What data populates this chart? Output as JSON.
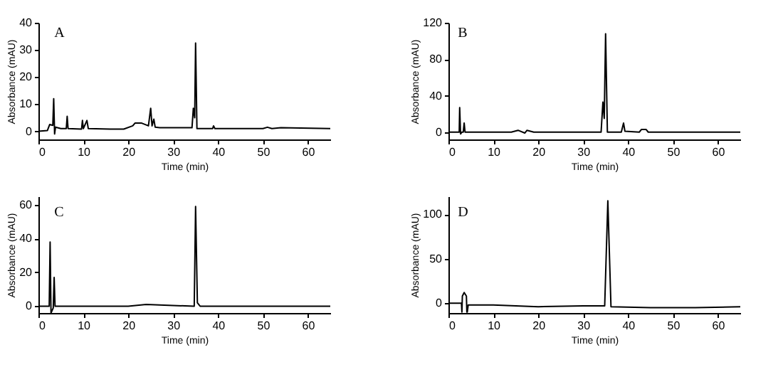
{
  "chart_data": [
    {
      "type": "line",
      "title": "A",
      "xlabel": "Time (min)",
      "ylabel": "Absorbance (mAU)",
      "xlim": [
        0,
        65
      ],
      "xticks": [
        0,
        10,
        20,
        30,
        40,
        50,
        60
      ],
      "ylim": [
        -3,
        40
      ],
      "yticks": [
        0,
        10,
        20,
        30,
        40
      ],
      "grid": false,
      "series": [
        {
          "color": "#000000",
          "x": [
            0,
            2,
            2.5,
            3.2,
            3.4,
            3.6,
            3.8,
            5,
            6.2,
            6.4,
            6.6,
            9.6,
            9.8,
            10,
            10.8,
            11.1,
            16,
            19,
            21,
            21.5,
            23,
            24.5,
            25,
            25.3,
            25.7,
            26,
            27,
            34.2,
            34.5,
            34.8,
            35,
            35.3,
            38.8,
            39,
            39.3,
            50,
            51,
            52,
            54,
            65
          ],
          "values": [
            0,
            0.3,
            2.5,
            2.2,
            12,
            -1,
            1.5,
            1,
            1,
            5.5,
            1,
            0.8,
            4,
            1,
            4,
            1,
            0.8,
            0.8,
            2,
            3,
            3,
            2,
            8.5,
            2,
            4.5,
            1.5,
            1.3,
            1.3,
            8.5,
            5,
            32.5,
            1,
            1,
            2,
            1,
            1,
            1.5,
            1,
            1.3,
            1
          ]
        }
      ]
    },
    {
      "type": "line",
      "title": "B",
      "xlabel": "Time (min)",
      "ylabel": "Absorbance (mAU)",
      "xlim": [
        0,
        65
      ],
      "xticks": [
        0,
        10,
        20,
        30,
        40,
        50,
        60
      ],
      "ylim": [
        -8,
        120
      ],
      "yticks": [
        0,
        40,
        80,
        120
      ],
      "grid": false,
      "series": [
        {
          "color": "#000000",
          "x": [
            0,
            2.4,
            2.5,
            2.7,
            3,
            3.3,
            3.5,
            3.7,
            14,
            15.5,
            17,
            17.5,
            19,
            34,
            34.4,
            34.7,
            35,
            35.4,
            38.5,
            39,
            39.3,
            42.5,
            43,
            44,
            44.5,
            65
          ],
          "values": [
            0,
            0,
            27,
            -2,
            0,
            0,
            10,
            0,
            0,
            2,
            -1,
            2,
            0,
            0,
            33,
            15,
            108,
            0,
            0,
            10,
            1,
            0,
            3,
            3,
            0,
            0
          ]
        }
      ]
    },
    {
      "type": "line",
      "title": "C",
      "xlabel": "Time (min)",
      "ylabel": "Absorbance (mAU)",
      "xlim": [
        0,
        65
      ],
      "xticks": [
        0,
        10,
        20,
        30,
        40,
        50,
        60
      ],
      "ylim": [
        -4,
        65
      ],
      "yticks": [
        0,
        20,
        40,
        60
      ],
      "grid": false,
      "series": [
        {
          "color": "#000000",
          "x": [
            0,
            2.4,
            2.6,
            2.8,
            3.3,
            3.5,
            3.7,
            20,
            24,
            34.7,
            35,
            35.4,
            36,
            65
          ],
          "values": [
            0,
            0,
            38,
            -4,
            -1,
            17,
            0,
            0,
            1,
            0,
            59,
            2,
            0,
            0
          ]
        }
      ]
    },
    {
      "type": "line",
      "title": "D",
      "xlabel": "Time (min)",
      "ylabel": "Absorbance (mAU)",
      "xlim": [
        0,
        65
      ],
      "xticks": [
        0,
        10,
        20,
        30,
        40,
        50,
        60
      ],
      "ylim": [
        -11,
        120
      ],
      "yticks": [
        0,
        50,
        100
      ],
      "grid": false,
      "series": [
        {
          "color": "#000000",
          "x": [
            0,
            2.9,
            3,
            3.1,
            3.5,
            4,
            4.1,
            4.2,
            4.4,
            10,
            20,
            30,
            34.8,
            35.5,
            36.2,
            45,
            55,
            65
          ],
          "values": [
            0,
            0,
            -10,
            8,
            12,
            8,
            -10,
            -10,
            -2,
            -2,
            -4,
            -3,
            -3,
            115,
            -4,
            -5,
            -5,
            -4
          ]
        }
      ]
    }
  ]
}
